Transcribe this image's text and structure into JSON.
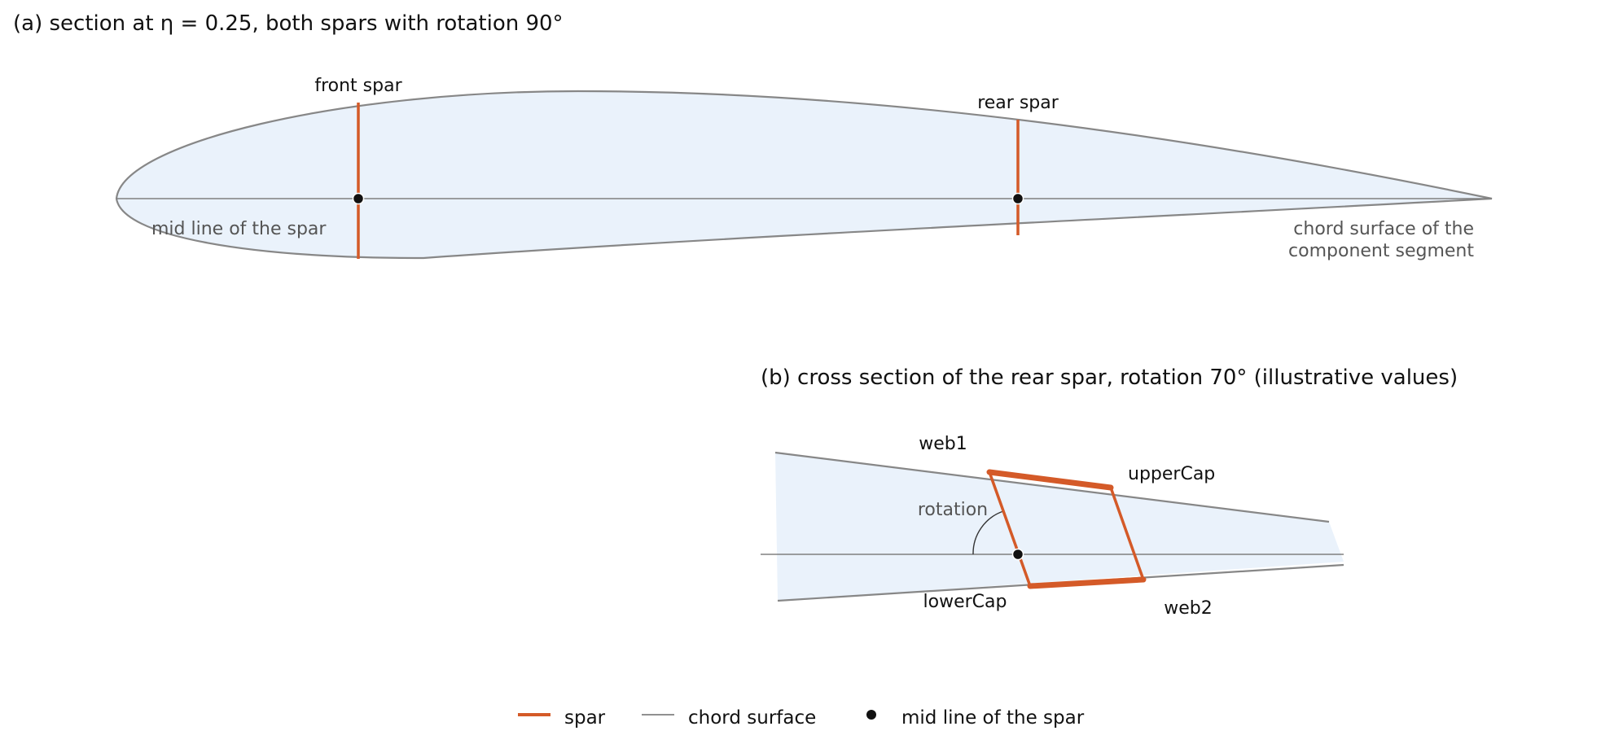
{
  "colors": {
    "spar": "#d45a28",
    "chord_surface": "#808080",
    "profile_outline": "#878787",
    "profile_fill": "#eaf2fb",
    "mid_line_point": "#111111"
  },
  "panel_a": {
    "title": "(a) section at η = 0.25, both spars with rotation 90°",
    "front_spar_label": "front spar",
    "rear_spar_label": "rear spar",
    "mid_line_label": "mid line of the spar",
    "chord_surface_label_line1": "chord surface of the",
    "chord_surface_label_line2": "component segment"
  },
  "panel_b": {
    "title": "(b) cross section of the rear spar, rotation 70° (illustrative values)",
    "web1_label": "web1",
    "upper_cap_label": "upperCap",
    "rotation_label": "rotation",
    "lower_cap_label": "lowerCap",
    "web2_label": "web2"
  },
  "legend": {
    "items": [
      {
        "label": "spar",
        "icon": "spar-line-icon"
      },
      {
        "label": "chord surface",
        "icon": "chord-surface-line-icon"
      },
      {
        "label": "mid line of the spar",
        "icon": "mid-line-dot-icon"
      }
    ]
  }
}
